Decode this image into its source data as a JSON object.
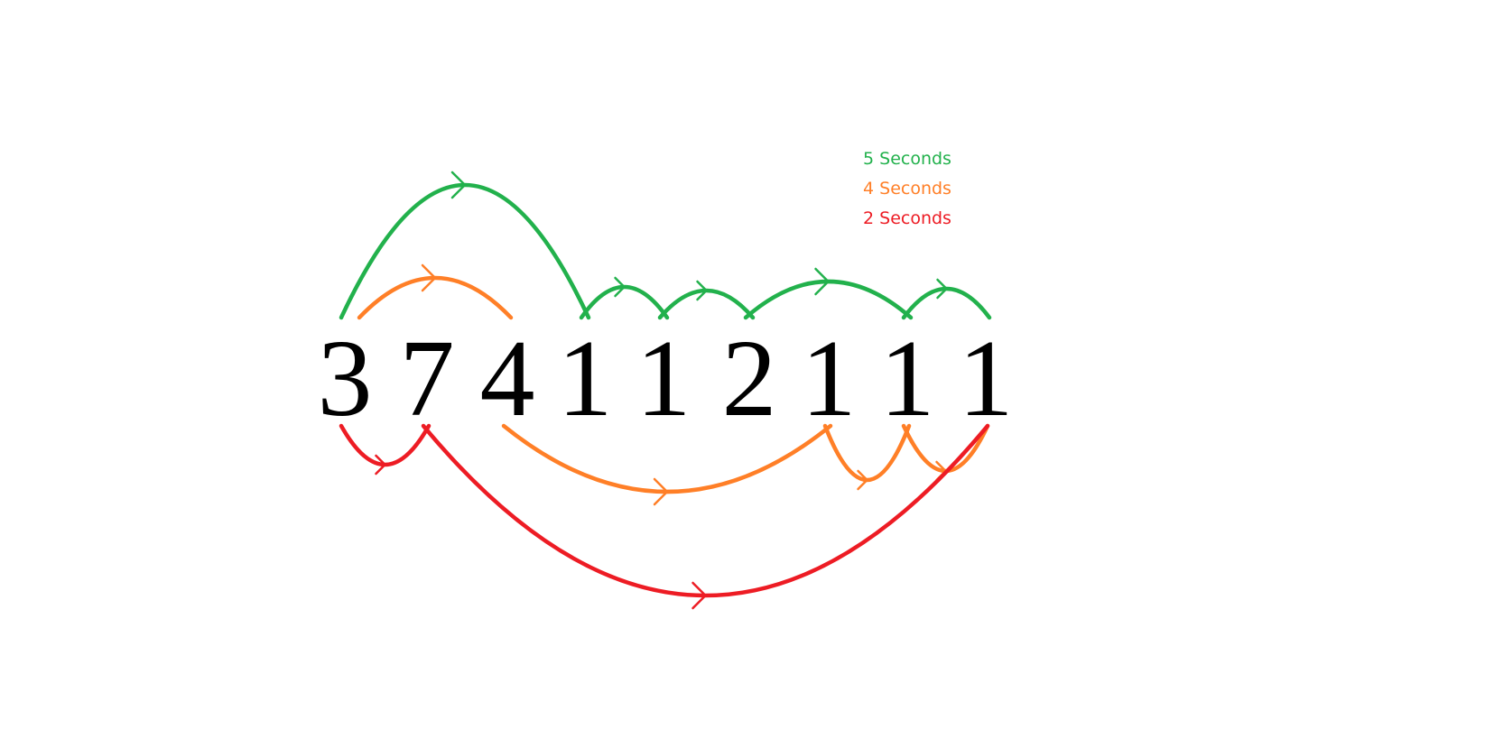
{
  "colors": {
    "green": "#22b14c",
    "orange": "#ff7f27",
    "red": "#ed1c24",
    "digit": "#000000"
  },
  "sequence": [
    "3",
    "7",
    "4",
    "1",
    "1",
    "2",
    "1",
    "1",
    "1"
  ],
  "legend": [
    {
      "label": "5 Seconds",
      "color": "#22b14c"
    },
    {
      "label": "4 Seconds",
      "color": "#ff7f27"
    },
    {
      "label": "2 Seconds",
      "color": "#ed1c24"
    }
  ],
  "jumps": [
    {
      "color": "green",
      "from": 0,
      "to": 3,
      "side": "top"
    },
    {
      "color": "green",
      "from": 3,
      "to": 4,
      "side": "top"
    },
    {
      "color": "green",
      "from": 4,
      "to": 5,
      "side": "top"
    },
    {
      "color": "green",
      "from": 5,
      "to": 7,
      "side": "top"
    },
    {
      "color": "green",
      "from": 7,
      "to": 8,
      "side": "top"
    },
    {
      "color": "orange",
      "from": 0,
      "to": 2,
      "side": "top"
    },
    {
      "color": "orange",
      "from": 2,
      "to": 6,
      "side": "bottom"
    },
    {
      "color": "orange",
      "from": 6,
      "to": 7,
      "side": "bottom"
    },
    {
      "color": "orange",
      "from": 7,
      "to": 8,
      "side": "bottom"
    },
    {
      "color": "red",
      "from": 0,
      "to": 1,
      "side": "bottom"
    },
    {
      "color": "red",
      "from": 1,
      "to": 8,
      "side": "bottom"
    }
  ]
}
